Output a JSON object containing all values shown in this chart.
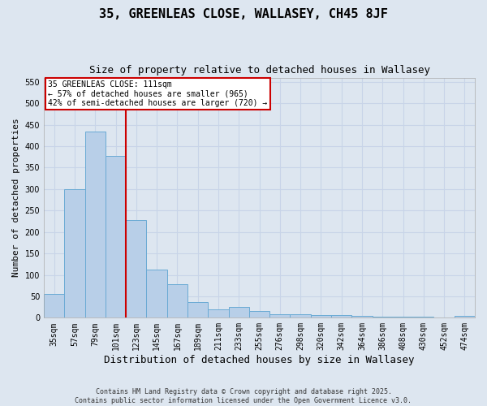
{
  "title": "35, GREENLEAS CLOSE, WALLASEY, CH45 8JF",
  "subtitle": "Size of property relative to detached houses in Wallasey",
  "xlabel": "Distribution of detached houses by size in Wallasey",
  "ylabel": "Number of detached properties",
  "categories": [
    "35sqm",
    "57sqm",
    "79sqm",
    "101sqm",
    "123sqm",
    "145sqm",
    "167sqm",
    "189sqm",
    "211sqm",
    "233sqm",
    "255sqm",
    "276sqm",
    "298sqm",
    "320sqm",
    "342sqm",
    "364sqm",
    "386sqm",
    "408sqm",
    "430sqm",
    "452sqm",
    "474sqm"
  ],
  "values": [
    55,
    300,
    435,
    378,
    228,
    113,
    78,
    37,
    20,
    25,
    15,
    8,
    9,
    7,
    6,
    4,
    2,
    2,
    2,
    1,
    4
  ],
  "bar_color": "#b8cfe8",
  "bar_edge_color": "#6aaad4",
  "vline_color": "#cc0000",
  "vline_pos": 3.5,
  "annotation_text": "35 GREENLEAS CLOSE: 111sqm\n← 57% of detached houses are smaller (965)\n42% of semi-detached houses are larger (720) →",
  "annotation_box_color": "white",
  "annotation_box_edge_color": "#cc0000",
  "ylim": [
    0,
    560
  ],
  "yticks": [
    0,
    50,
    100,
    150,
    200,
    250,
    300,
    350,
    400,
    450,
    500,
    550
  ],
  "grid_color": "#c8d4e8",
  "background_color": "#dde6f0",
  "footer_line1": "Contains HM Land Registry data © Crown copyright and database right 2025.",
  "footer_line2": "Contains public sector information licensed under the Open Government Licence v3.0.",
  "title_fontsize": 11,
  "subtitle_fontsize": 9,
  "xlabel_fontsize": 9,
  "ylabel_fontsize": 8,
  "tick_fontsize": 7,
  "annotation_fontsize": 7,
  "footer_fontsize": 6
}
